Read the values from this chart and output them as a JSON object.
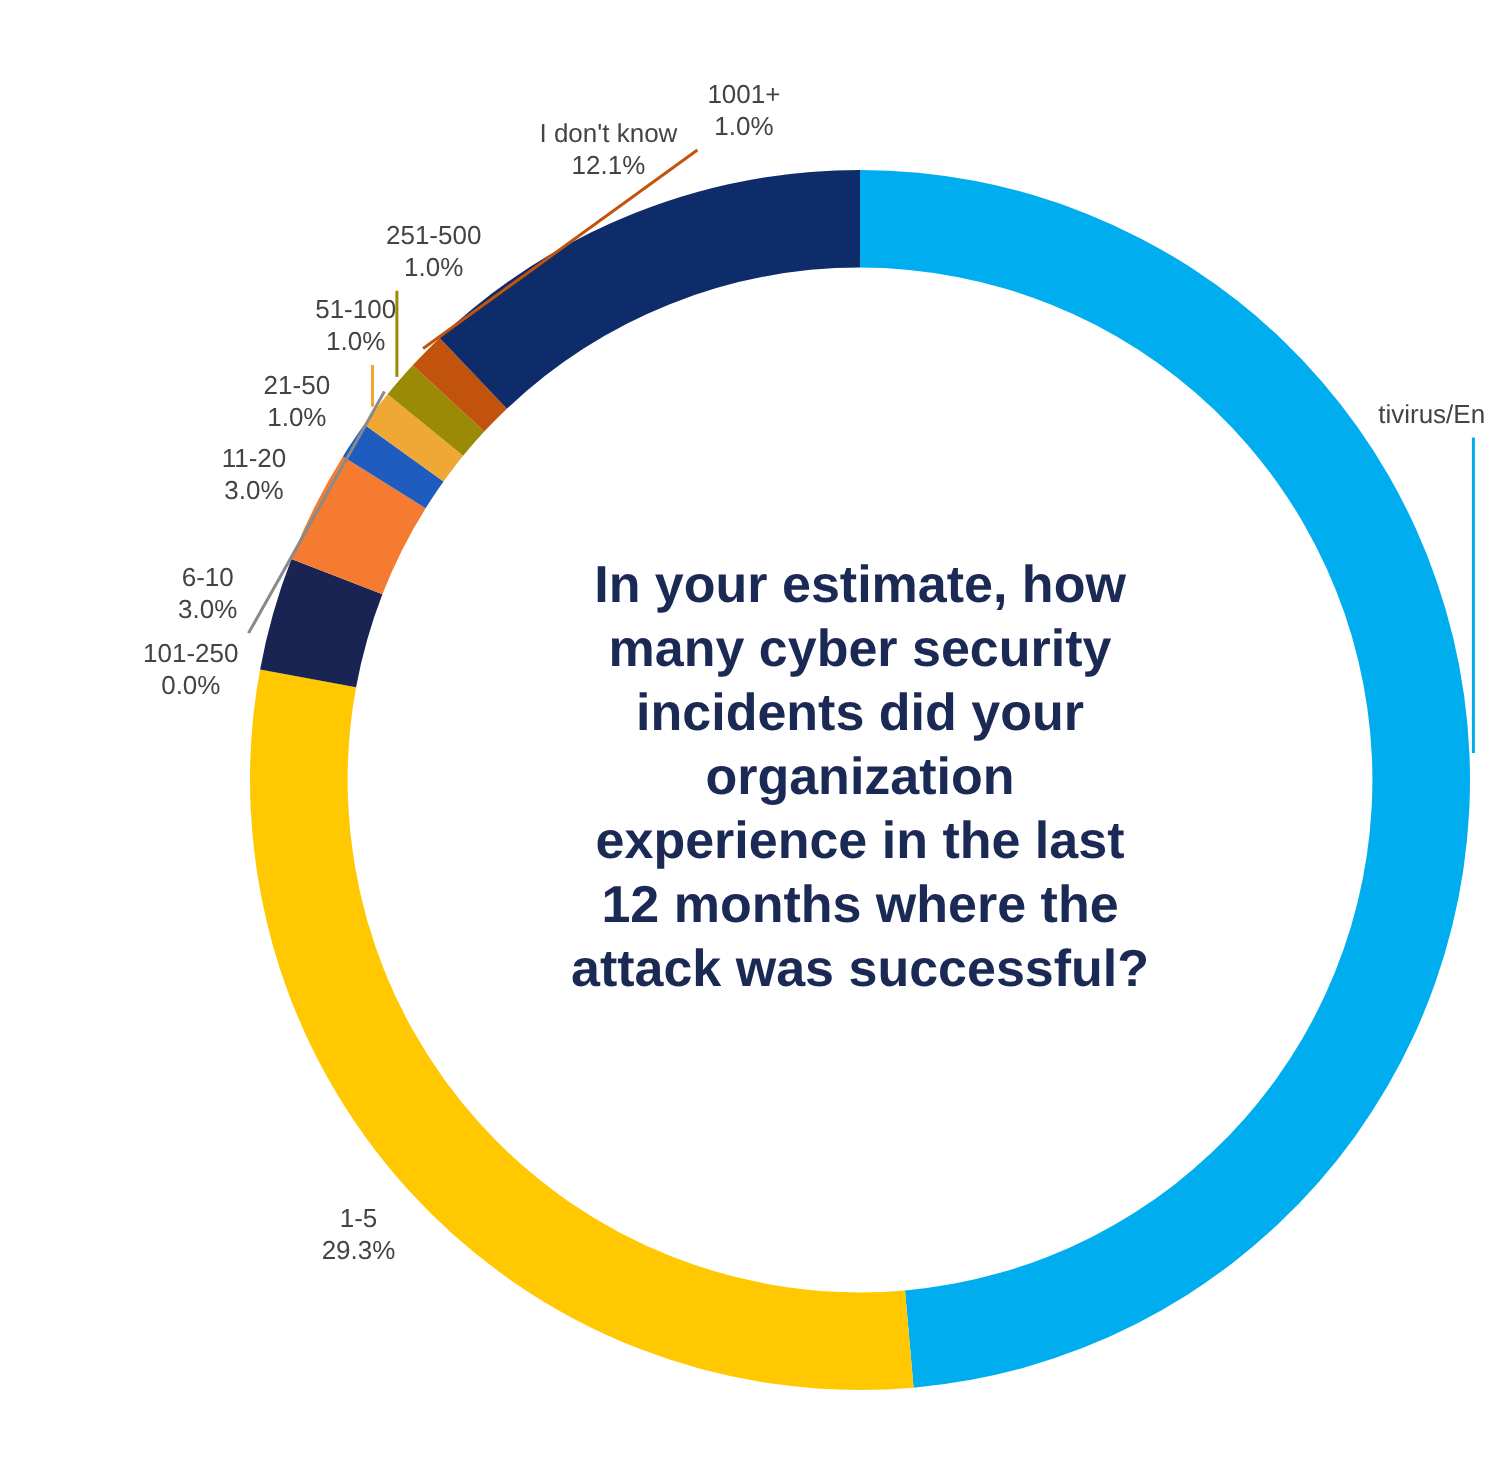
{
  "chart_data": {
    "type": "donut",
    "title": "In your estimate, how many cyber security incidents did your organization experience in the last 12 months where the attack was successful?",
    "categories": [
      "tivirus/En",
      "1-5",
      "6-10",
      "11-20",
      "21-50",
      "51-100",
      "101-250",
      "251-500",
      "1001+",
      "I don't know"
    ],
    "values": [
      48.6,
      29.3,
      3.0,
      3.0,
      1.0,
      1.0,
      0.0,
      1.0,
      1.0,
      12.1
    ],
    "value_labels": [
      null,
      "29.3%",
      "3.0%",
      "3.0%",
      "1.0%",
      "1.0%",
      "0.0%",
      "1.0%",
      "1.0%",
      "12.1%"
    ],
    "colors": [
      "#00adef",
      "#ffc800",
      "#1a2452",
      "#f47b30",
      "#1e5cc0",
      "#efa834",
      "#8a8a8a",
      "#9a8a05",
      "#c2530c",
      "#0f2c6a"
    ]
  }
}
